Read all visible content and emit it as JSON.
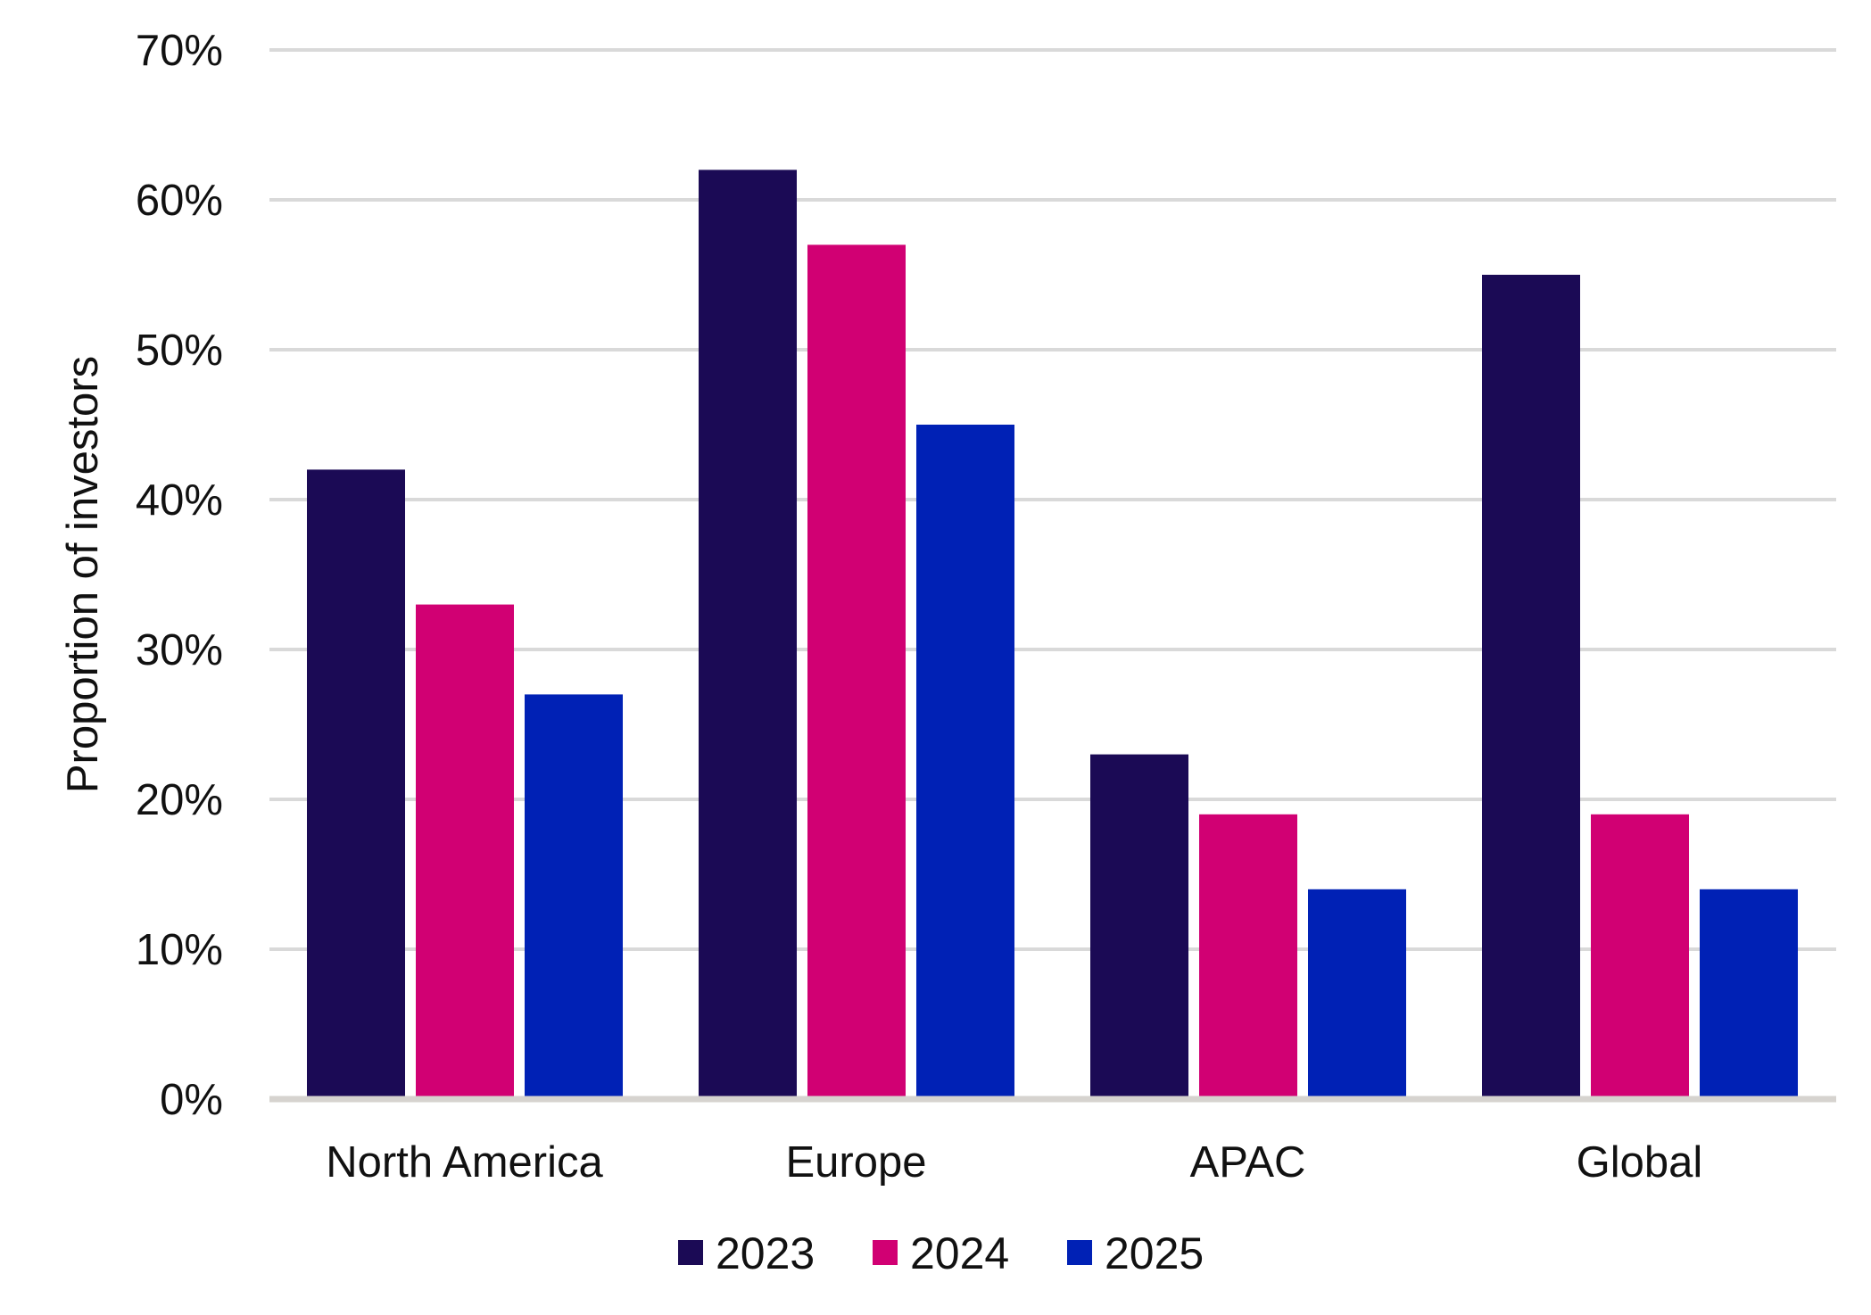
{
  "chart_data": {
    "type": "bar",
    "title": "",
    "xlabel": "",
    "ylabel": "Proportion of investors",
    "ylim": [
      0,
      70
    ],
    "y_ticks": [
      0,
      10,
      20,
      30,
      40,
      50,
      60,
      70
    ],
    "y_tick_labels": [
      "0%",
      "10%",
      "20%",
      "30%",
      "40%",
      "50%",
      "60%",
      "70%"
    ],
    "grid": true,
    "legend_position": "bottom-center",
    "categories": [
      "North America",
      "Europe",
      "APAC",
      "Global"
    ],
    "series": [
      {
        "name": "2023",
        "color": "#1b0a55",
        "values": [
          42,
          62,
          23,
          55
        ]
      },
      {
        "name": "2024",
        "color": "#d10073",
        "values": [
          33,
          57,
          19,
          19
        ]
      },
      {
        "name": "2025",
        "color": "#0021b5",
        "values": [
          27,
          45,
          14,
          14
        ]
      }
    ],
    "colors": {
      "gridline": "#d9d9d9",
      "baseline": "#d6d3cf",
      "text": "#111111"
    }
  }
}
